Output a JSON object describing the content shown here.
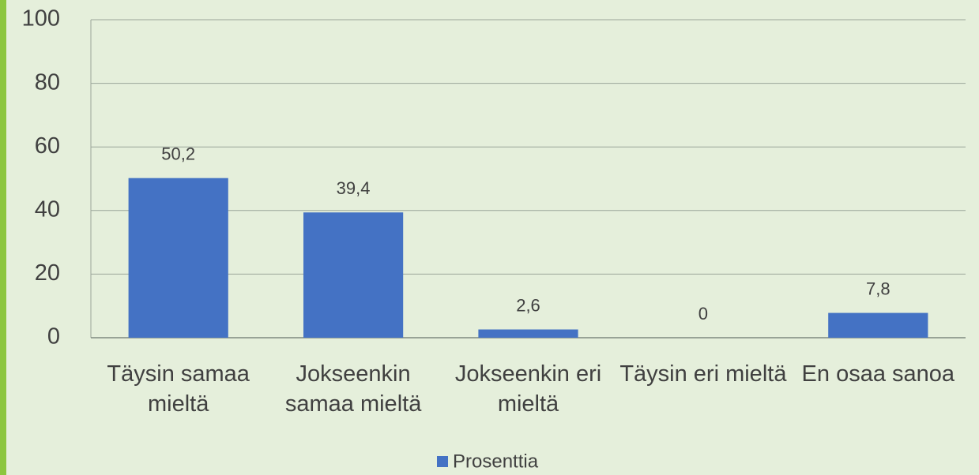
{
  "chart_data": {
    "type": "bar",
    "categories": [
      "Täysin samaa mieltä",
      "Jokseenkin samaa mieltä",
      "Jokseenkin eri mieltä",
      "Täysin eri mieltä",
      "En osaa sanoa"
    ],
    "series": [
      {
        "name": "Prosenttia",
        "color": "#4472c4",
        "values": [
          50.2,
          39.4,
          2.6,
          0,
          7.8
        ],
        "value_labels": [
          "50,2",
          "39,4",
          "2,6",
          "0",
          "7,8"
        ]
      }
    ],
    "ylim": [
      0,
      100
    ],
    "yticks": [
      0,
      20,
      40,
      60,
      80,
      100
    ],
    "grid": true,
    "legend": "bottom"
  }
}
